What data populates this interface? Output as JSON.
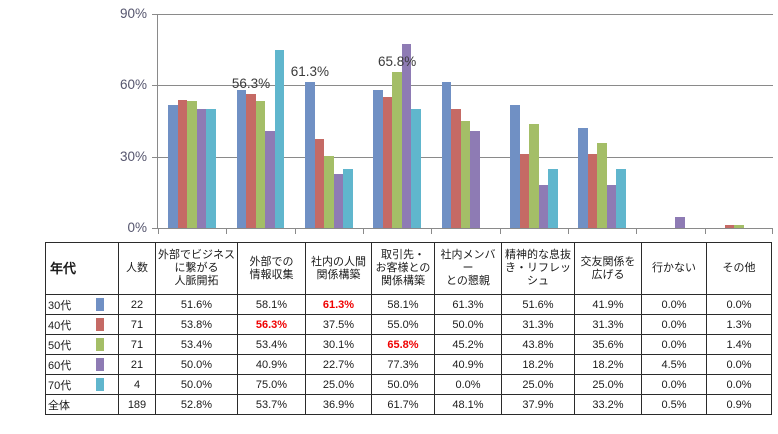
{
  "chart_data": {
    "type": "bar",
    "title": "",
    "xlabel": "",
    "ylabel": "",
    "ylim": [
      0,
      90
    ],
    "yticks": [
      {
        "label": "0%",
        "value": 0
      },
      {
        "label": "30%",
        "value": 30
      },
      {
        "label": "60%",
        "value": 60
      },
      {
        "label": "90%",
        "value": 90
      }
    ],
    "grid": true,
    "legend_position": "none (color swatches shown in data table)",
    "categories": [
      "外部でビジネスに繋がる人脈開拓",
      "外部での情報収集",
      "社内の人間関係構築",
      "取引先・お客様との関係構築",
      "社内メンバーとの懇親",
      "精神的な息抜き・リフレッシュ",
      "交友関係を広げる",
      "行かない",
      "その他"
    ],
    "series": [
      {
        "name": "30代",
        "color": "#7090c4",
        "values": [
          51.6,
          58.1,
          61.3,
          58.1,
          61.3,
          51.6,
          41.9,
          0.0,
          0.0
        ]
      },
      {
        "name": "40代",
        "color": "#c56a65",
        "values": [
          53.8,
          56.3,
          37.5,
          55.0,
          50.0,
          31.3,
          31.3,
          0.0,
          1.3
        ]
      },
      {
        "name": "50代",
        "color": "#a4be67",
        "values": [
          53.4,
          53.4,
          30.1,
          65.8,
          45.2,
          43.8,
          35.6,
          0.0,
          1.4
        ]
      },
      {
        "name": "60代",
        "color": "#8e7bb4",
        "values": [
          50.0,
          40.9,
          22.7,
          77.3,
          40.9,
          18.2,
          18.2,
          4.5,
          0.0
        ]
      },
      {
        "name": "70代",
        "color": "#60b6cd",
        "values": [
          50.0,
          75.0,
          25.0,
          50.0,
          0.0,
          25.0,
          25.0,
          0.0,
          0.0
        ]
      }
    ],
    "annotations": [
      {
        "text": "56.3%",
        "group": 1,
        "series": 1
      },
      {
        "text": "61.3%",
        "group": 2,
        "series": 0
      },
      {
        "text": "65.8%",
        "group": 3,
        "series": 2
      }
    ]
  },
  "table": {
    "col_headers": [
      "年代",
      "人数",
      "外部でビジネス\nに繋がる\n人脈開拓",
      "外部での\n情報収集",
      "社内の人間\n関係構築",
      "取引先・\nお客様との\n関係構築",
      "社内メンバー\nとの懇親",
      "精神的な息抜\nき・リフレッシュ",
      "交友関係を\n広げる",
      "行かない",
      "その他"
    ],
    "rows": [
      {
        "label": "30代",
        "swatch": "#7090c4",
        "count": "22",
        "values": [
          "51.6%",
          "58.1%",
          "61.3%",
          "58.1%",
          "61.3%",
          "51.6%",
          "41.9%",
          "0.0%",
          "0.0%"
        ],
        "highlight": [
          2
        ]
      },
      {
        "label": "40代",
        "swatch": "#c56a65",
        "count": "71",
        "values": [
          "53.8%",
          "56.3%",
          "37.5%",
          "55.0%",
          "50.0%",
          "31.3%",
          "31.3%",
          "0.0%",
          "1.3%"
        ],
        "highlight": [
          1
        ]
      },
      {
        "label": "50代",
        "swatch": "#a4be67",
        "count": "71",
        "values": [
          "53.4%",
          "53.4%",
          "30.1%",
          "65.8%",
          "45.2%",
          "43.8%",
          "35.6%",
          "0.0%",
          "1.4%"
        ],
        "highlight": [
          3
        ]
      },
      {
        "label": "60代",
        "swatch": "#8e7bb4",
        "count": "21",
        "values": [
          "50.0%",
          "40.9%",
          "22.7%",
          "77.3%",
          "40.9%",
          "18.2%",
          "18.2%",
          "4.5%",
          "0.0%"
        ],
        "highlight": []
      },
      {
        "label": "70代",
        "swatch": "#60b6cd",
        "count": "4",
        "values": [
          "50.0%",
          "75.0%",
          "25.0%",
          "50.0%",
          "0.0%",
          "25.0%",
          "25.0%",
          "0.0%",
          "0.0%"
        ],
        "highlight": []
      },
      {
        "label": "全体",
        "swatch": null,
        "count": "189",
        "values": [
          "52.8%",
          "53.7%",
          "36.9%",
          "61.7%",
          "48.1%",
          "37.9%",
          "33.2%",
          "0.5%",
          "0.9%"
        ],
        "highlight": []
      }
    ]
  },
  "colors": {
    "axis": "#8a8a8a",
    "axis_label": "#55556e",
    "annotation": "#3a3a3a",
    "table_border": "#2b2b2b",
    "highlight_red": "#ef0000"
  }
}
